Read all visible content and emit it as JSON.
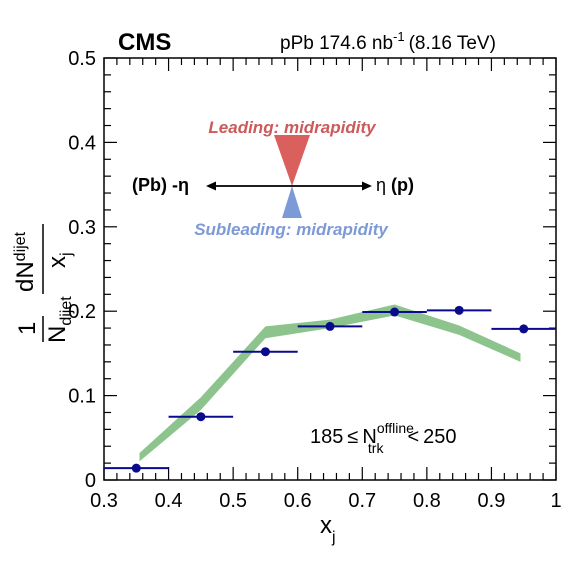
{
  "chart_data": {
    "type": "scatter",
    "header": {
      "experiment": "CMS",
      "collision": "pPb 174.6 nb",
      "lumi_exp": "-1",
      "energy": "(8.16 TeV)"
    },
    "xlabel": {
      "main": "x",
      "sub": "j"
    },
    "ylabel": {
      "prefix": "1",
      "n": "N",
      "n_sub": "dijet",
      "dn": "dN",
      "dn_sub": "dijet",
      "dx": "x",
      "dx_sub": "j"
    },
    "xlim": [
      0.3,
      1.0
    ],
    "ylim": [
      0.0,
      0.5
    ],
    "x_ticks": [
      "0.3",
      "0.4",
      "0.5",
      "0.6",
      "0.7",
      "0.8",
      "0.9",
      "1"
    ],
    "y_ticks": [
      "0",
      "0.1",
      "0.2",
      "0.3",
      "0.4",
      "0.5"
    ],
    "series": [
      {
        "marker_color": "#0a0a8c",
        "points": [
          {
            "x": 0.35,
            "y": 0.014,
            "xlo": 0.3,
            "xhi": 0.4
          },
          {
            "x": 0.45,
            "y": 0.075,
            "xlo": 0.4,
            "xhi": 0.5
          },
          {
            "x": 0.55,
            "y": 0.152,
            "xlo": 0.5,
            "xhi": 0.6
          },
          {
            "x": 0.65,
            "y": 0.182,
            "xlo": 0.6,
            "xhi": 0.7
          },
          {
            "x": 0.75,
            "y": 0.199,
            "xlo": 0.7,
            "xhi": 0.8
          },
          {
            "x": 0.85,
            "y": 0.201,
            "xlo": 0.8,
            "xhi": 0.9
          },
          {
            "x": 0.95,
            "y": 0.179,
            "xlo": 0.9,
            "xhi": 1.0
          }
        ]
      }
    ],
    "band": {
      "color": "#8dc48d",
      "x": [
        0.355,
        0.45,
        0.55,
        0.65,
        0.75,
        0.85,
        0.945
      ],
      "ylo": [
        0.022,
        0.083,
        0.168,
        0.18,
        0.195,
        0.172,
        0.14
      ],
      "yhi": [
        0.032,
        0.098,
        0.182,
        0.19,
        0.208,
        0.183,
        0.15
      ]
    },
    "annotation": {
      "leading": "Leading: midrapidity",
      "subleading": "Subleading: midrapidity",
      "left_label": "(Pb)",
      "left_eta": "-η",
      "right_eta": "η",
      "right_label": "(p)",
      "leading_color": "#d9605d",
      "subleading_color": "#7c9bd6"
    },
    "selection": {
      "lo": "185",
      "le": "≤",
      "n": "N",
      "n_sup": "offline",
      "n_sub": "trk",
      "lt": "<",
      "hi": "250"
    }
  }
}
